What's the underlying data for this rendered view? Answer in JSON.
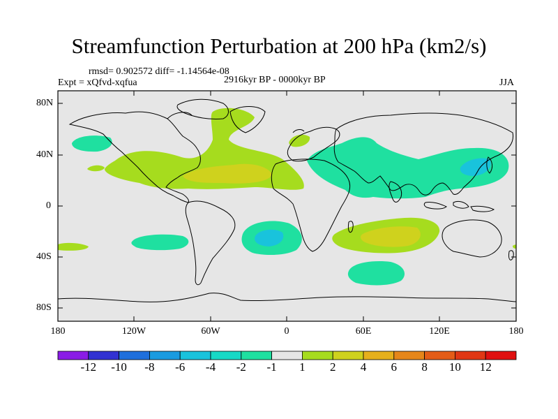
{
  "title": "Streamfunction Perturbation at 200 hPa (km2/s)",
  "stats": "rmsd= 0.902572  diff= -1.14564e-08",
  "experiment": "Expt = xQfvd-xqfua",
  "period": "2916kyr BP - 0000kyr BP",
  "season": "JJA",
  "y_axis_labels": [
    "80N",
    "40N",
    "0",
    "40S",
    "80S"
  ],
  "x_axis_labels": [
    "180",
    "120W",
    "60W",
    "0",
    "60E",
    "120E",
    "180"
  ],
  "colorbar": {
    "labels": [
      "-12",
      "-10",
      "-8",
      "-6",
      "-4",
      "-2",
      "-1",
      "1",
      "2",
      "4",
      "6",
      "8",
      "10",
      "12"
    ],
    "colors": [
      "#8a1ce6",
      "#3232d2",
      "#1f6fdc",
      "#1a9be0",
      "#19c3dc",
      "#17d9c6",
      "#1fe0a0",
      "#e6e6e6",
      "#a6dc1e",
      "#cfd21d",
      "#e6b01c",
      "#e6861a",
      "#e45c17",
      "#e03714",
      "#e01010"
    ]
  },
  "map_colors": {
    "background": "#e6e6e6",
    "pos1": "#a6dc1e",
    "pos2": "#cfd21d",
    "neg1": "#1fe0a0",
    "neg2": "#19c3dc"
  },
  "chart_data": {
    "type": "filled-contour-map",
    "variable": "Streamfunction Perturbation at 200 hPa",
    "units": "km2/s",
    "projection": "cylindrical-equidistant",
    "lon_range": [
      -180,
      180
    ],
    "lat_range": [
      -90,
      90
    ],
    "contour_levels": [
      -12,
      -10,
      -8,
      -6,
      -4,
      -2,
      -1,
      1,
      2,
      4,
      6,
      8,
      10,
      12
    ],
    "features": [
      {
        "sign": "positive",
        "max_level": 4,
        "center_lon": -40,
        "center_lat": 25
      },
      {
        "sign": "positive",
        "max_level": 2,
        "center_lon": -55,
        "center_lat": 70
      },
      {
        "sign": "positive",
        "max_level": 2,
        "center_lon": 20,
        "center_lat": 50
      },
      {
        "sign": "negative",
        "min_level": -4,
        "center_lon": 75,
        "center_lat": 35
      },
      {
        "sign": "negative",
        "min_level": -4,
        "center_lon": 140,
        "center_lat": 30
      },
      {
        "sign": "negative",
        "min_level": -2,
        "center_lon": -160,
        "center_lat": 50
      },
      {
        "sign": "negative",
        "min_level": -2,
        "center_lon": -100,
        "center_lat": -25
      },
      {
        "sign": "negative",
        "min_level": -4,
        "center_lon": -15,
        "center_lat": -22
      },
      {
        "sign": "positive",
        "max_level": 4,
        "center_lon": 80,
        "center_lat": -20
      },
      {
        "sign": "negative",
        "min_level": -2,
        "center_lon": 60,
        "center_lat": -47
      },
      {
        "sign": "positive",
        "max_level": 2,
        "center_lon": -168,
        "center_lat": -32
      }
    ]
  }
}
